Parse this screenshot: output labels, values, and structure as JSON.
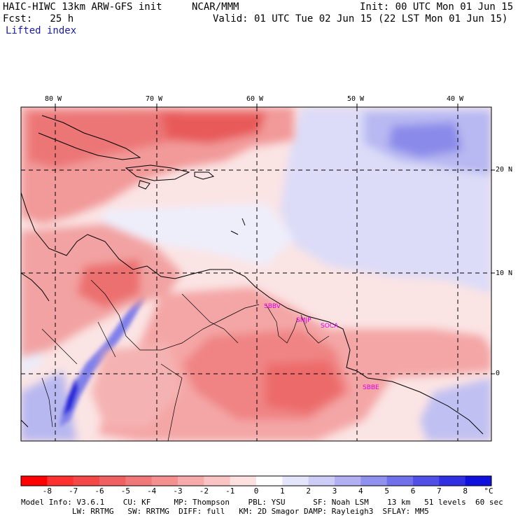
{
  "header": {
    "model": "HAIC-HIWC 13km ARW-GFS init",
    "org": "NCAR/MMM",
    "init": "Init: 00 UTC Mon 01 Jun 15",
    "fcst": "Fcst:   25 h",
    "valid": "Valid: 01 UTC Tue 02 Jun 15 (22 LST Mon 01 Jun 15)",
    "field": "Lifted index"
  },
  "map": {
    "lon_labels": [
      "80 W",
      "70 W",
      "60 W",
      "50 W",
      "40 W"
    ],
    "lat_labels": [
      "20 N",
      "10 N",
      "0"
    ],
    "lon_values": [
      -80,
      -70,
      -60,
      -50,
      -40
    ],
    "lat_values": [
      20,
      10,
      0
    ],
    "stations": [
      "SBBV",
      "SMJP",
      "SOCA",
      "SBBE"
    ],
    "colors": {
      "negative_strong": "#e8454f",
      "negative_light": "#f7c9c9",
      "neutral": "#ffffff",
      "positive_light": "#d3d3f6",
      "positive_strong": "#4d4df0",
      "station": "#e000e0"
    }
  },
  "colorbar": {
    "labels": [
      "-8",
      "-7",
      "-6",
      "-5",
      "-4",
      "-3",
      "-2",
      "-1",
      "0",
      "1",
      "2",
      "3",
      "4",
      "5",
      "6",
      "7",
      "8"
    ],
    "unit": "°C",
    "colors": [
      "#ff0000",
      "#ff3030",
      "#f44848",
      "#f06060",
      "#f07878",
      "#f49090",
      "#f7aaaa",
      "#fac4c4",
      "#fde0e0",
      "#ffffff",
      "#e4e4fa",
      "#ccccf6",
      "#b0b0f2",
      "#9090ee",
      "#7070ea",
      "#5050e6",
      "#3030e2",
      "#1010dc"
    ]
  },
  "footer": {
    "line1": "Model Info: V3.6.1    CU: KF     MP: Thompson    PBL: YSU      SF: Noah LSM    13 km   51 levels  60 sec",
    "line2": "           LW: RRTMG   SW: RRTMG  DIFF: full   KM: 2D Smagor DAMP: Rayleigh3  SFLAY: MM5"
  }
}
